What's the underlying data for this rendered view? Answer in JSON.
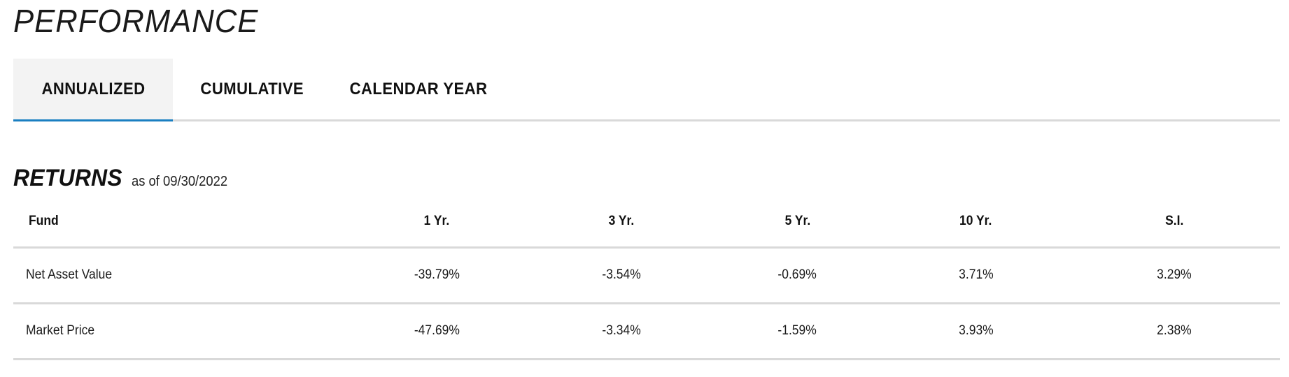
{
  "header": {
    "title": "PERFORMANCE"
  },
  "tabs": [
    {
      "label": "ANNUALIZED",
      "active": true
    },
    {
      "label": "CUMULATIVE",
      "active": false
    },
    {
      "label": "CALENDAR YEAR",
      "active": false
    }
  ],
  "returns": {
    "title": "RETURNS",
    "as_of": "as of 09/30/2022",
    "columns": [
      "Fund",
      "1 Yr.",
      "3 Yr.",
      "5 Yr.",
      "10 Yr.",
      "S.I."
    ],
    "rows": [
      {
        "fund": "Net Asset Value",
        "values": [
          "-39.79%",
          "-3.54%",
          "-0.69%",
          "3.71%",
          "3.29%"
        ]
      },
      {
        "fund": "Market Price",
        "values": [
          "-47.69%",
          "-3.34%",
          "-1.59%",
          "3.93%",
          "2.38%"
        ]
      }
    ]
  },
  "colors": {
    "active_tab_underline": "#1a7fc1",
    "active_tab_background": "#f3f3f3",
    "divider": "#d9d9d9"
  }
}
